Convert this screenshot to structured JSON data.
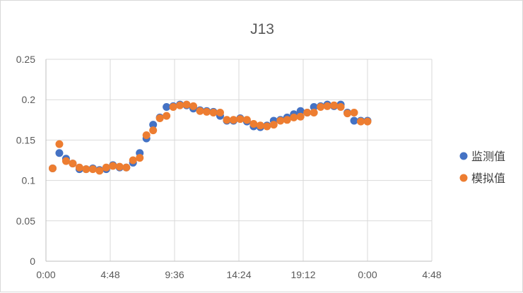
{
  "chart_data": {
    "type": "scatter",
    "title": "J13",
    "xlabel": "",
    "ylabel": "",
    "x_unit": "hours",
    "xlim": [
      0,
      28.8
    ],
    "ylim": [
      0,
      0.25
    ],
    "x_ticks": [
      0,
      4.8,
      9.6,
      14.4,
      19.2,
      24,
      28.8
    ],
    "x_tick_labels": [
      "0:00",
      "4:48",
      "9:36",
      "14:24",
      "19:12",
      "0:00",
      "4:48"
    ],
    "y_ticks": [
      0,
      0.05,
      0.1,
      0.15,
      0.2,
      0.25
    ],
    "y_tick_labels": [
      "0",
      "0.05",
      "0.1",
      "0.15",
      "0.2",
      "0.25"
    ],
    "grid": true,
    "legend_position": "right",
    "series": [
      {
        "name": "监测值",
        "color": "#4472C4",
        "x": [
          0.5,
          1,
          1.5,
          2,
          2.5,
          3,
          3.5,
          4,
          4.5,
          5,
          5.5,
          6,
          6.5,
          7,
          7.5,
          8,
          8.5,
          9,
          9.5,
          10,
          10.5,
          11,
          11.5,
          12,
          12.5,
          13,
          13.5,
          14,
          14.5,
          15,
          15.5,
          16,
          16.5,
          17,
          17.5,
          18,
          18.5,
          19,
          19.5,
          20,
          20.5,
          21,
          21.5,
          22,
          22.5,
          23,
          23.5,
          24
        ],
        "y": [
          0.115,
          0.134,
          0.127,
          0.121,
          0.114,
          0.114,
          0.115,
          0.113,
          0.114,
          0.119,
          0.116,
          0.116,
          0.122,
          0.134,
          0.152,
          0.169,
          0.178,
          0.191,
          0.192,
          0.194,
          0.193,
          0.189,
          0.187,
          0.186,
          0.185,
          0.18,
          0.174,
          0.174,
          0.177,
          0.173,
          0.167,
          0.166,
          0.168,
          0.174,
          0.175,
          0.178,
          0.182,
          0.186,
          0.184,
          0.191,
          0.192,
          0.194,
          0.192,
          0.194,
          0.184,
          0.174,
          0.174,
          0.174
        ]
      },
      {
        "name": "模拟值",
        "color": "#ED7D31",
        "x": [
          0.5,
          1,
          1.5,
          2,
          2.5,
          3,
          3.5,
          4,
          4.5,
          5,
          5.5,
          6,
          6.5,
          7,
          7.5,
          8,
          8.5,
          9,
          9.5,
          10,
          10.5,
          11,
          11.5,
          12,
          12.5,
          13,
          13.5,
          14,
          14.5,
          15,
          15.5,
          16,
          16.5,
          17,
          17.5,
          18,
          18.5,
          19,
          19.5,
          20,
          20.5,
          21,
          21.5,
          22,
          22.5,
          23,
          23.5,
          24
        ],
        "y": [
          0.115,
          0.145,
          0.124,
          0.121,
          0.116,
          0.114,
          0.114,
          0.112,
          0.116,
          0.118,
          0.117,
          0.116,
          0.125,
          0.128,
          0.156,
          0.162,
          0.177,
          0.18,
          0.191,
          0.193,
          0.194,
          0.192,
          0.186,
          0.185,
          0.184,
          0.184,
          0.175,
          0.175,
          0.176,
          0.175,
          0.17,
          0.168,
          0.167,
          0.169,
          0.174,
          0.175,
          0.178,
          0.179,
          0.184,
          0.184,
          0.191,
          0.192,
          0.193,
          0.191,
          0.183,
          0.184,
          0.173,
          0.173
        ]
      }
    ]
  }
}
